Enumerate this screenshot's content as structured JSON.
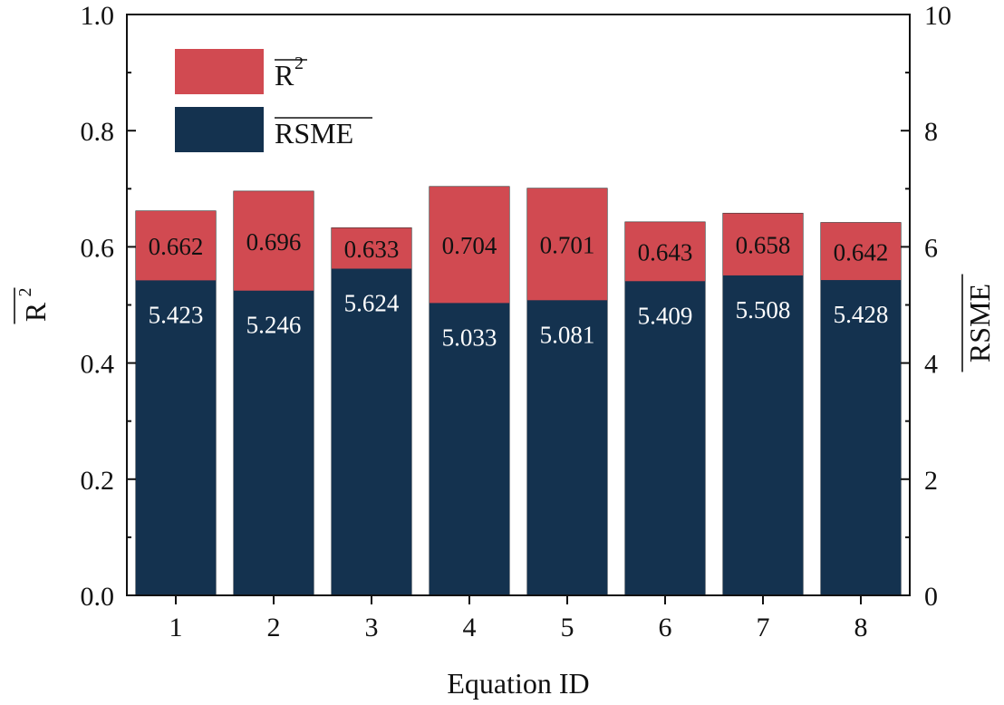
{
  "chart_data": {
    "type": "bar",
    "stacking": "overlay",
    "categories": [
      "1",
      "2",
      "3",
      "4",
      "5",
      "6",
      "7",
      "8"
    ],
    "series": [
      {
        "name": "R2",
        "axis": "left",
        "color": "#d14a51",
        "values": [
          0.662,
          0.696,
          0.633,
          0.704,
          0.701,
          0.643,
          0.658,
          0.642
        ],
        "labels": [
          "0.662",
          "0.696",
          "0.633",
          "0.704",
          "0.701",
          "0.643",
          "0.658",
          "0.642"
        ],
        "label_color": "#111111"
      },
      {
        "name": "RSME",
        "axis": "right",
        "color": "#14324f",
        "values": [
          5.423,
          5.246,
          5.624,
          5.033,
          5.081,
          5.409,
          5.508,
          5.428
        ],
        "labels": [
          "5.423",
          "5.246",
          "5.624",
          "5.033",
          "5.081",
          "5.409",
          "5.508",
          "5.428"
        ],
        "label_color": "#ffffff"
      }
    ],
    "xlabel": "Equation ID",
    "ylabel_left": "R",
    "ylabel_left_superscript": "2",
    "ylabel_right": "RSME",
    "ylim_left": [
      0,
      1.0
    ],
    "ylim_right": [
      0,
      10
    ],
    "yticks_left": [
      "0.0",
      "0.2",
      "0.4",
      "0.6",
      "0.8",
      "1.0"
    ],
    "yticks_right": [
      "0",
      "2",
      "4",
      "6",
      "8",
      "10"
    ],
    "legend": {
      "placement": "top-left",
      "entries": [
        {
          "label": "R",
          "superscript": "2",
          "overline": true,
          "color": "#d14a51"
        },
        {
          "label": "RSME",
          "superscript": "",
          "overline": true,
          "color": "#14324f"
        }
      ]
    },
    "grid": false
  }
}
